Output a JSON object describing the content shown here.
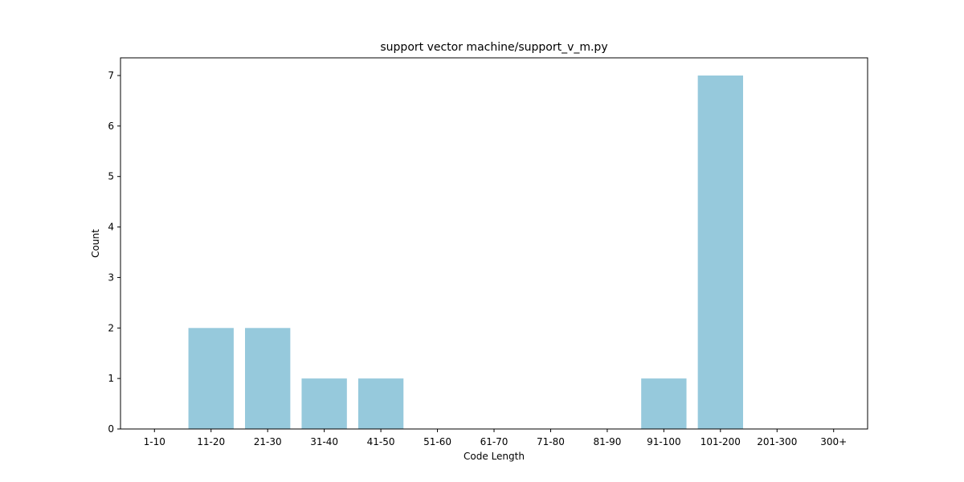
{
  "chart_data": {
    "type": "bar",
    "title": "support vector machine/support_v_m.py",
    "xlabel": "Code Length",
    "ylabel": "Count",
    "categories": [
      "1-10",
      "11-20",
      "21-30",
      "31-40",
      "41-50",
      "51-60",
      "61-70",
      "71-80",
      "81-90",
      "91-100",
      "101-200",
      "201-300",
      "300+"
    ],
    "values": [
      0,
      2,
      2,
      1,
      1,
      0,
      0,
      0,
      0,
      1,
      7,
      0,
      0
    ],
    "ylim": [
      0,
      7.35
    ],
    "yticks": [
      0,
      1,
      2,
      3,
      4,
      5,
      6,
      7
    ],
    "bar_color": "#96c9dc",
    "grid": false
  }
}
